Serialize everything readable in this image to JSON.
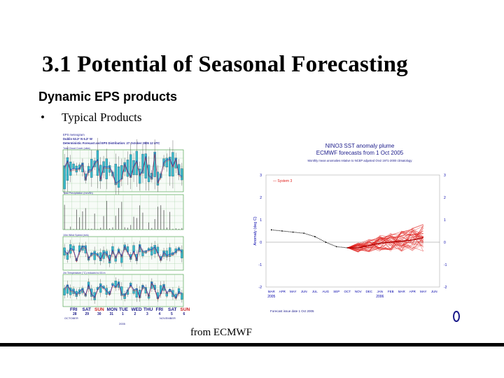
{
  "slide": {
    "title": "3.1 Potential of Seasonal Forecasting",
    "subtitle": "Dynamic EPS products",
    "bullets": [
      {
        "marker": "•",
        "text": "Typical Products"
      }
    ],
    "credit": "from ECMWF"
  },
  "left_figure": {
    "header_lines": [
      "EPS meteogram",
      "Dublin  53.3° N   6.3° W",
      "Deterministic Forecast and EPS Distribution: 27 October 2005 12 UTC"
    ],
    "panels": [
      "Total Cloud Cover (okta)",
      "Total Precipitation (mm/6h)",
      "10m Wind Speed (m/s)",
      "2m Temperature (°C) reduced to 53 m"
    ],
    "days": [
      "FRI",
      "SAT",
      "SUN",
      "MON",
      "TUE",
      "WED",
      "THU",
      "FRI",
      "SAT",
      "SUN"
    ],
    "dates": [
      "28",
      "29",
      "30",
      "31",
      "1",
      "2",
      "3",
      "4",
      "5",
      "6"
    ],
    "months": [
      "OCTOBER",
      "NOVEMBER"
    ],
    "year": "2005"
  },
  "chart_data": {
    "type": "line",
    "title": "NINO3 SST anomaly plume",
    "subtitle": "ECMWF forecasts from 1 Oct 2005",
    "note": "Monthly mean anomalies relative to NCEP adjusted OIv2 1971-2000 climatology",
    "legend": "System 3",
    "ylabel": "Anomaly (deg C)",
    "ylim": [
      -2,
      3
    ],
    "x": [
      "MAR",
      "APR",
      "MAY",
      "JUN",
      "JUL",
      "AUG",
      "SEP",
      "OCT",
      "NOV",
      "DEC",
      "JAN",
      "FEB",
      "MAR",
      "APR",
      "MAY",
      "JUN"
    ],
    "year_labels": [
      "2005",
      "2006"
    ],
    "footer": "Forecast issue date 1 Oct 2005",
    "observed": [
      0.55,
      0.5,
      0.45,
      0.4,
      0.25,
      0.0,
      -0.2,
      -0.25
    ],
    "ensemble_mean": [
      -0.25,
      -0.15,
      -0.05,
      0.0,
      0.05,
      0.1,
      0.2
    ],
    "spread": 0.55,
    "colors": {
      "observed": "#000000",
      "forecast": "#e0201c",
      "axis": "#0000aa",
      "zero_line": "#888888"
    }
  }
}
